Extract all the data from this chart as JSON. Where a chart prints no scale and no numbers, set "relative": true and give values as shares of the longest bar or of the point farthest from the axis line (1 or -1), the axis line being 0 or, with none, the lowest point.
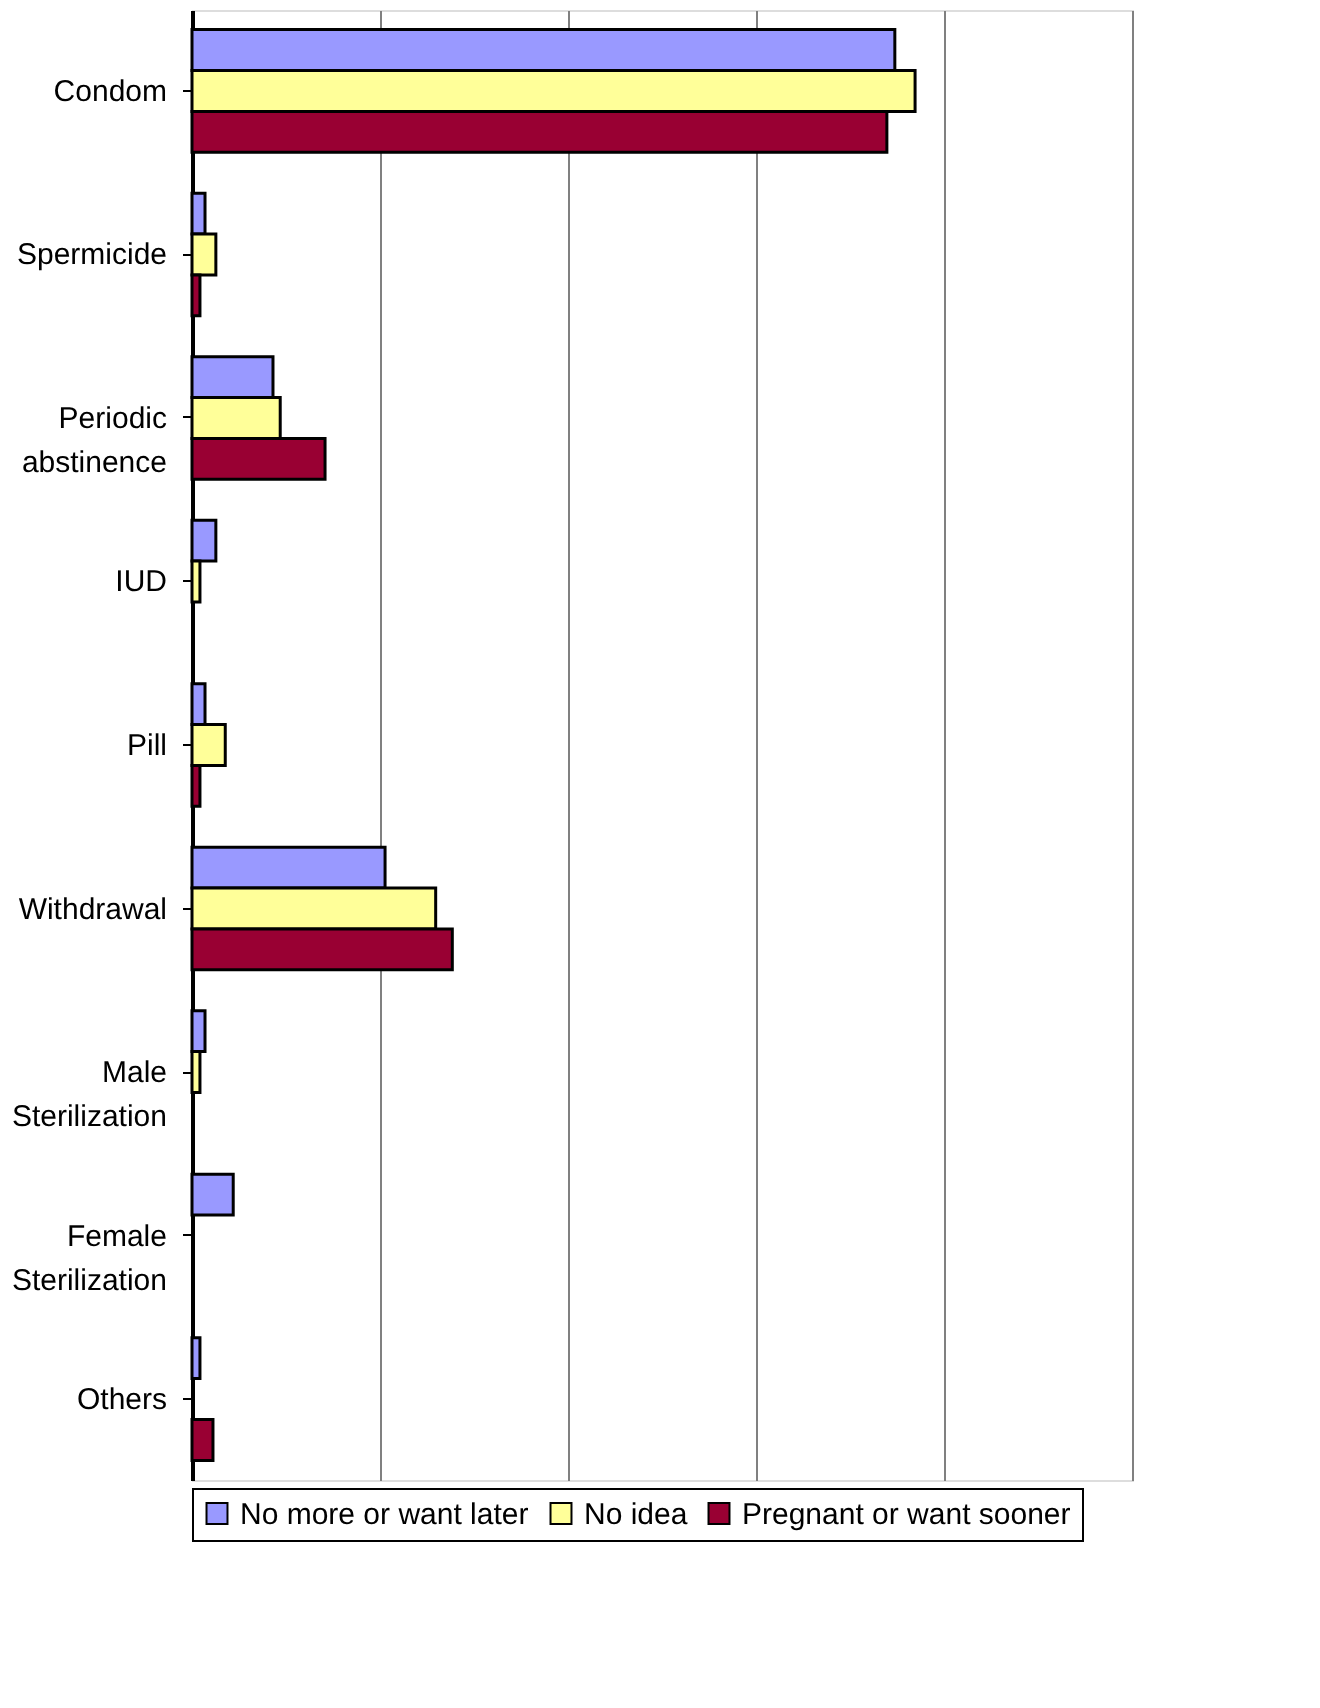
{
  "chart_data": {
    "type": "bar",
    "orientation": "horizontal",
    "relative": true,
    "grid": "x",
    "legend": "bottom",
    "categories": [
      "Condom",
      "Spermicide",
      "Periodic abstinence",
      "IUD",
      "Pill",
      "Withdrawal",
      "Male Sterilization",
      "Female Sterilization",
      "Others"
    ],
    "series": [
      {
        "name": "No more or want later",
        "color": "#9999ff",
        "values": [
          0.972,
          0.018,
          0.112,
          0.033,
          0.018,
          0.267,
          0.018,
          0.057,
          0.011
        ]
      },
      {
        "name": "No idea",
        "color": "#ffff99",
        "values": [
          1,
          0.033,
          0.122,
          0.011,
          0.046,
          0.337,
          0.011,
          null,
          null
        ]
      },
      {
        "name": "Pregnant or want sooner",
        "color": "#990033",
        "values": [
          0.961,
          0.011,
          0.184,
          null,
          0.011,
          0.36,
          null,
          null,
          0.029
        ]
      }
    ]
  }
}
